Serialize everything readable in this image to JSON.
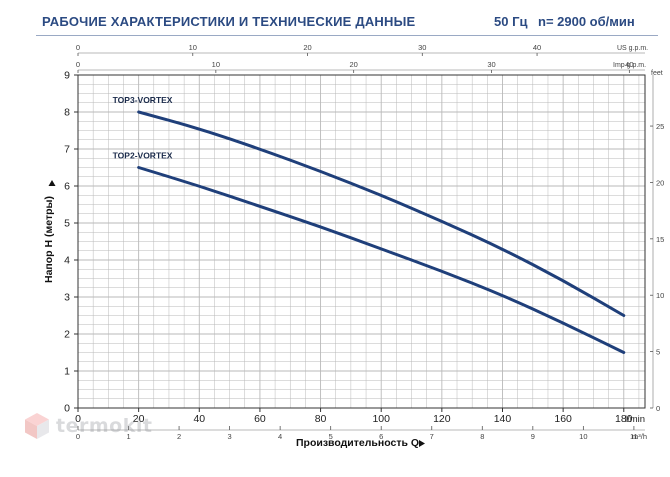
{
  "header": {
    "title": "РАБОЧИЕ ХАРАКТЕРИСТИКИ И ТЕХНИЧЕСКИЕ ДАННЫЕ",
    "frequency": "50 Гц",
    "speed": "n= 2900 об/мин"
  },
  "watermark": {
    "text": "termokit"
  },
  "colors": {
    "curve": "#1f3f7a",
    "grid": "#b9b9b9",
    "axis": "#333333",
    "watermark_icon": "#e06060"
  },
  "chart_data": {
    "type": "line",
    "xlabel": "Производительность Q",
    "ylabel": "Напор H (метры)",
    "x_unit": "l/min",
    "xlim": [
      0,
      180
    ],
    "ylim": [
      0,
      9
    ],
    "x_ticks": [
      "0",
      "20",
      "40",
      "60",
      "80",
      "100",
      "120",
      "140",
      "160",
      "180"
    ],
    "y_ticks": [
      "0",
      "1",
      "2",
      "3",
      "4",
      "5",
      "6",
      "7",
      "8",
      "9"
    ],
    "grid": true,
    "secondary_axes": {
      "us_gpm": {
        "label": "US g.p.m.",
        "ticks": [
          "0",
          "10",
          "20",
          "30",
          "40"
        ]
      },
      "imp_gpm": {
        "label": "Imp g.p.m.",
        "ticks": [
          "0",
          "10",
          "20",
          "30",
          "40"
        ]
      },
      "m3h": {
        "label": "m³/h",
        "ticks": [
          "0",
          "1",
          "2",
          "3",
          "4",
          "5",
          "6",
          "7",
          "8",
          "9",
          "10",
          "11"
        ]
      },
      "feet": {
        "label": "feet",
        "ticks": [
          "0",
          "5",
          "10",
          "15",
          "20",
          "25"
        ]
      }
    },
    "series": [
      {
        "name": "TOP3-VORTEX",
        "x": [
          20,
          40,
          60,
          80,
          100,
          120,
          140,
          160,
          180
        ],
        "y": [
          8.0,
          7.55,
          7.0,
          6.4,
          5.75,
          5.05,
          4.3,
          3.45,
          2.5
        ]
      },
      {
        "name": "TOP2-VORTEX",
        "x": [
          20,
          40,
          60,
          80,
          100,
          120,
          140,
          160,
          180
        ],
        "y": [
          6.5,
          6.0,
          5.45,
          4.9,
          4.3,
          3.7,
          3.05,
          2.3,
          1.5
        ]
      }
    ]
  }
}
